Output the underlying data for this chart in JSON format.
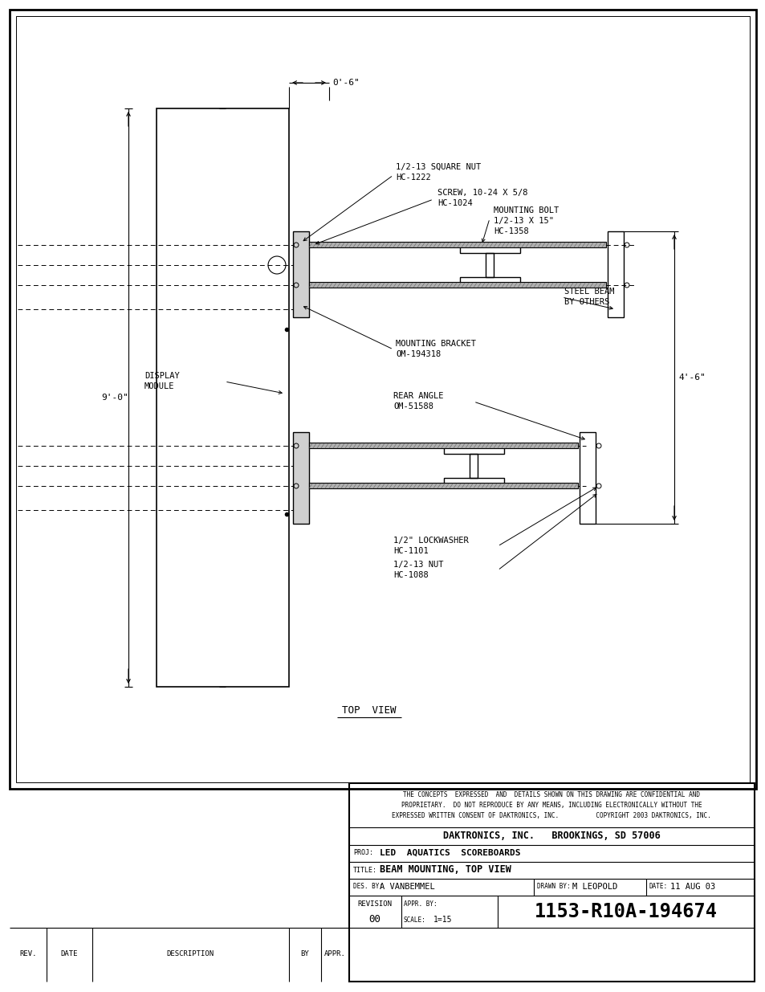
{
  "bg_color": "#ffffff",
  "lc": "#000000",
  "title_block": {
    "confidential_text": "THE CONCEPTS  EXPRESSED  AND  DETAILS SHOWN ON THIS DRAWING ARE CONFIDENTIAL AND\nPROPRIETARY.  DO NOT REPRODUCE BY ANY MEANS, INCLUDING ELECTRONICALLY WITHOUT THE\nEXPRESSED WRITTEN CONSENT OF DAKTRONICS, INC.          COPYRIGHT 2003 DAKTRONICS, INC.",
    "company": "DAKTRONICS, INC.   BROOKINGS, SD 57006",
    "proj_label": "PROJ:",
    "proj_value": "LED  AQUATICS  SCOREBOARDS",
    "title_label": "TITLE:",
    "title_value": "BEAM MOUNTING, TOP VIEW",
    "des_label": "DES. BY:",
    "des_value": "A VANBEMMEL",
    "drawn_label": "DRAWN BY:",
    "drawn_value": "M LEOPOLD",
    "date_label": "DATE:",
    "date_value": "11 AUG 03",
    "revision_label": "REVISION",
    "revision_value": "00",
    "appr_label": "APPR. BY:",
    "scale_label": "SCALE:",
    "scale_value": "1=15",
    "drawing_number": "1153-R10A-194674",
    "rev_label": "REV.",
    "date_col": "DATE",
    "desc_col": "DESCRIPTION",
    "by_col": "BY",
    "appr_col": "APPR."
  },
  "dim_06": "0'-6\"",
  "dim_90": "9'-0\"",
  "dim_46": "4'-6\"",
  "label_top_view": "TOP  VIEW"
}
